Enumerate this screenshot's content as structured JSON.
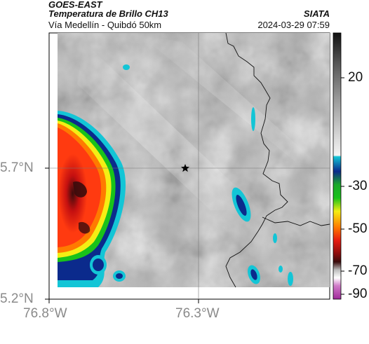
{
  "header": {
    "title_line1": "GOES-EAST",
    "title_line2": "Temperatura de Brillo CH13",
    "subtitle": "Vía Medellín - Quibdó 50km",
    "source": "SIATA",
    "timestamp": "2024-03-29 07:59"
  },
  "map": {
    "lat_ticks": [
      "5.7°N",
      "5.2°N"
    ],
    "lon_ticks": [
      "76.8°W",
      "76.3°W"
    ],
    "marker": "star-icon"
  },
  "colorbar": {
    "ticks": [
      "20",
      "-30",
      "-50",
      "-70",
      "-90"
    ],
    "colors": {
      "warm_gray": "#bdbdbd",
      "cyan": "#13c5d6",
      "blue": "#0b2a8c",
      "green": "#19c21a",
      "yellow": "#f4ee14",
      "orange": "#ff7a00",
      "red": "#e61a10",
      "darkred": "#3a0c0c",
      "magenta": "#b83fb3"
    }
  }
}
